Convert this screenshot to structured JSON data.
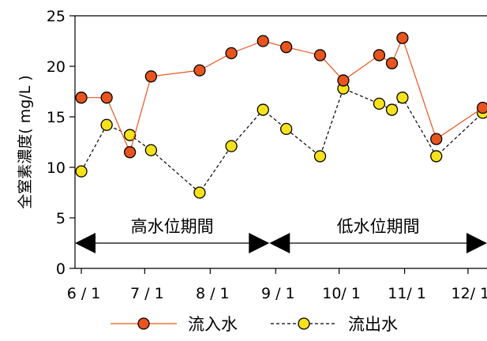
{
  "chart_data": {
    "type": "line",
    "ylabel": "全窒素濃度( mg/L )",
    "xlabel": "",
    "ylim": [
      0,
      25
    ],
    "y_ticks": [
      0,
      5,
      10,
      15,
      20,
      25
    ],
    "x_ticks": [
      {
        "label": "6 / 1",
        "x": 0
      },
      {
        "label": "7 / 1",
        "x": 30
      },
      {
        "label": "8 / 1",
        "x": 61
      },
      {
        "label": "9 / 1",
        "x": 92
      },
      {
        "label": "10/ 1",
        "x": 122
      },
      {
        "label": "11/ 1",
        "x": 153
      },
      {
        "label": "12/ 1",
        "x": 183
      }
    ],
    "xlim": [
      -3,
      192
    ],
    "x_unit": "days from 6/1",
    "series": [
      {
        "name": "流入水",
        "color": "#e8541e",
        "line_color": "#e8541e",
        "dash": false,
        "points": [
          [
            0,
            16.9
          ],
          [
            12,
            16.9
          ],
          [
            23,
            11.5
          ],
          [
            33,
            19.0
          ],
          [
            56,
            19.6
          ],
          [
            71,
            21.3
          ],
          [
            86,
            22.5
          ],
          [
            97,
            21.9
          ],
          [
            113,
            21.1
          ],
          [
            124,
            18.6
          ],
          [
            141,
            21.1
          ],
          [
            147,
            20.3
          ],
          [
            152,
            22.8
          ],
          [
            168,
            12.8
          ],
          [
            190,
            15.9
          ]
        ]
      },
      {
        "name": "流出水",
        "color": "#f5e21b",
        "line_color": "#000000",
        "dash": true,
        "points": [
          [
            0,
            9.6
          ],
          [
            12,
            14.2
          ],
          [
            23,
            13.2
          ],
          [
            33,
            11.7
          ],
          [
            56,
            7.5
          ],
          [
            71,
            12.1
          ],
          [
            86,
            15.7
          ],
          [
            97,
            13.8
          ],
          [
            113,
            11.1
          ],
          [
            124,
            17.8
          ],
          [
            141,
            16.3
          ],
          [
            147,
            15.7
          ],
          [
            152,
            16.9
          ],
          [
            168,
            11.1
          ],
          [
            190,
            15.4
          ]
        ]
      }
    ],
    "periods": [
      {
        "label": "高水位期間",
        "from": -3,
        "to": 89
      },
      {
        "label": "低水位期間",
        "from": 89,
        "to": 192
      }
    ],
    "periods_y": 2.5,
    "legend": "bottom"
  }
}
